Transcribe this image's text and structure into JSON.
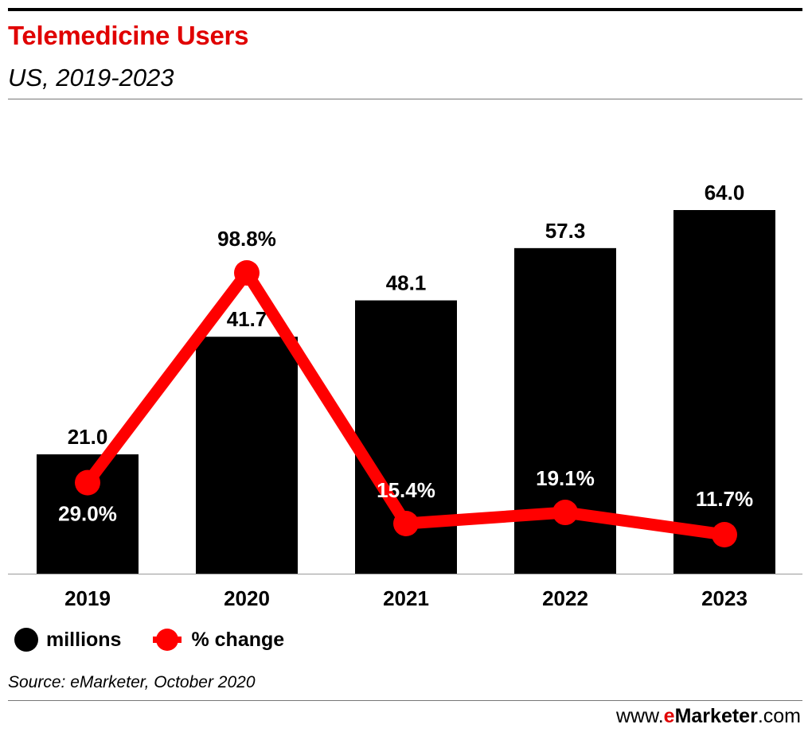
{
  "header": {
    "title": "Telemedicine Users",
    "subtitle": "US, 2019-2023"
  },
  "legend": {
    "bars": "millions",
    "line": "% change"
  },
  "footer": {
    "source": "Source: eMarketer, October 2020",
    "site_prefix": "www.",
    "site_brand_e": "e",
    "site_brand_rest": "Marketer",
    "site_suffix": ".com"
  },
  "colors": {
    "title": "#e00000",
    "bars": "#000000",
    "line": "#ff0000"
  },
  "chart_data": {
    "type": "bar",
    "categories": [
      "2019",
      "2020",
      "2021",
      "2022",
      "2023"
    ],
    "series": [
      {
        "name": "millions",
        "type": "bar",
        "values": [
          21.0,
          41.7,
          48.1,
          57.3,
          64.0
        ],
        "labels": [
          "21.0",
          "41.7",
          "48.1",
          "57.3",
          "64.0"
        ]
      },
      {
        "name": "% change",
        "type": "line",
        "values": [
          29.0,
          98.8,
          15.4,
          19.1,
          11.7
        ],
        "labels": [
          "29.0%",
          "98.8%",
          "15.4%",
          "19.1%",
          "11.7%"
        ]
      }
    ],
    "title": "Telemedicine Users",
    "subtitle": "US, 2019-2023",
    "ylim_bars": [
      0,
      64
    ],
    "ylim_line": [
      0,
      100
    ],
    "grid": false,
    "legend": "bottom-left"
  }
}
